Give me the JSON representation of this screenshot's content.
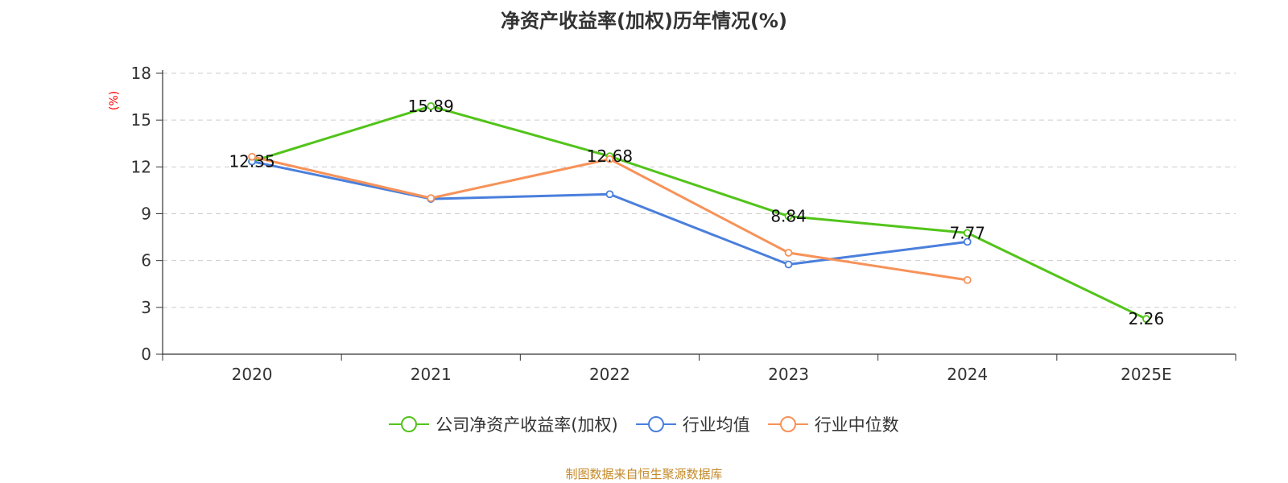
{
  "title": "净资产收益率(加权)历年情况(%)",
  "source": "制图数据来自恒生聚源数据库",
  "chart_data": {
    "type": "line",
    "title": "净资产收益率(加权)历年情况(%)",
    "xlabel": "",
    "ylabel": "(%)",
    "categories": [
      "2020",
      "2021",
      "2022",
      "2023",
      "2024",
      "2025E"
    ],
    "ylim": [
      0,
      18
    ],
    "yticks": [
      0,
      3,
      6,
      9,
      12,
      15,
      18
    ],
    "grid": true,
    "legend_position": "bottom",
    "series": [
      {
        "name": "公司净资产收益率(加权)",
        "color": "#52c41a",
        "values": [
          12.35,
          15.89,
          12.68,
          8.84,
          7.77,
          2.26
        ],
        "labels": [
          "12.35",
          "15.89",
          "12.68",
          "8.84",
          "7.77",
          "2.26"
        ]
      },
      {
        "name": "行业均值",
        "color": "#4a7fdc",
        "values": [
          12.35,
          9.95,
          10.25,
          5.75,
          7.2,
          null
        ],
        "labels": null
      },
      {
        "name": "行业中位数",
        "color": "#f79259",
        "values": [
          12.65,
          10.0,
          12.5,
          6.5,
          4.75,
          null
        ],
        "labels": null
      }
    ]
  }
}
